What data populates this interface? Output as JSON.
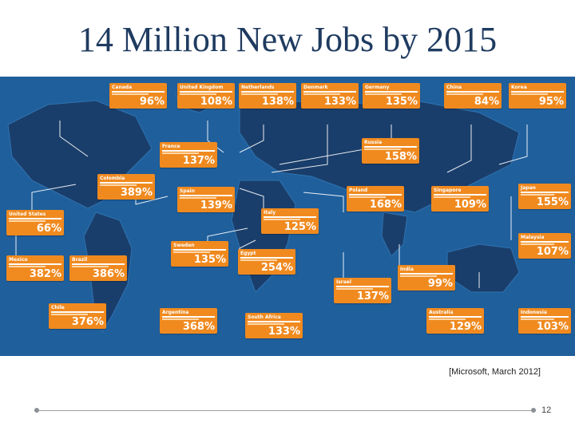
{
  "slide": {
    "title": "14 Million New Jobs by 2015",
    "caption": "[Microsoft, March 2012]",
    "page_number": "12"
  },
  "colors": {
    "ocean": "#1f5f9c",
    "land": "#1a3e6b",
    "card": "#f08a1f"
  },
  "map": {
    "cards": [
      {
        "name": "Canada",
        "pct": "96%"
      },
      {
        "name": "United Kingdom",
        "pct": "108%"
      },
      {
        "name": "Netherlands",
        "pct": "138%"
      },
      {
        "name": "Denmark",
        "pct": "133%"
      },
      {
        "name": "Germany",
        "pct": "135%"
      },
      {
        "name": "China",
        "pct": "84%"
      },
      {
        "name": "Korea",
        "pct": "95%"
      },
      {
        "name": "France",
        "pct": "137%"
      },
      {
        "name": "Russia",
        "pct": "158%"
      },
      {
        "name": "Colombia",
        "pct": "389%"
      },
      {
        "name": "Spain",
        "pct": "139%"
      },
      {
        "name": "Poland",
        "pct": "168%"
      },
      {
        "name": "Singapore",
        "pct": "109%"
      },
      {
        "name": "Japan",
        "pct": "155%"
      },
      {
        "name": "United States",
        "pct": "66%"
      },
      {
        "name": "Italy",
        "pct": "125%"
      },
      {
        "name": "Malaysia",
        "pct": "107%"
      },
      {
        "name": "Mexico",
        "pct": "382%"
      },
      {
        "name": "Brazil",
        "pct": "386%"
      },
      {
        "name": "Sweden",
        "pct": "135%"
      },
      {
        "name": "Egypt",
        "pct": "254%"
      },
      {
        "name": "India",
        "pct": "99%"
      },
      {
        "name": "Israel",
        "pct": "137%"
      },
      {
        "name": "Chile",
        "pct": "376%"
      },
      {
        "name": "Argentina",
        "pct": "368%"
      },
      {
        "name": "South Africa",
        "pct": "133%"
      },
      {
        "name": "Australia",
        "pct": "129%"
      },
      {
        "name": "Indonesia",
        "pct": "103%"
      }
    ]
  }
}
